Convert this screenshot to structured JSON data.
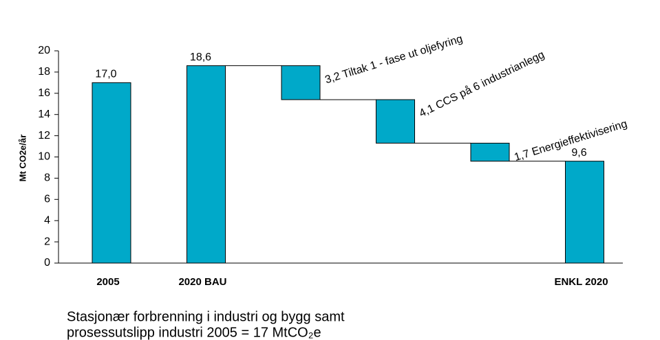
{
  "chart_data": {
    "type": "waterfall",
    "y_label": "Mt CO2e/år",
    "categories": [
      "2005",
      "2020 BAU",
      null,
      null,
      null,
      "ENKL 2020"
    ],
    "measures": [
      "absolute",
      "absolute",
      "decrease",
      "decrease",
      "decrease",
      "absolute"
    ],
    "values": [
      17.0,
      18.6,
      3.2,
      4.1,
      1.7,
      9.6
    ],
    "value_labels": [
      "17,0",
      "18,6",
      "3,2",
      "4,1",
      "1,7",
      "9,6"
    ],
    "step_labels": [
      null,
      null,
      "Tiltak 1 - fase ut oljefyring",
      "CCS på 6 industrianlegg",
      "Energieffektivisering",
      null
    ],
    "color": "#00a9c9",
    "ylim": [
      0,
      20
    ],
    "yticks": [
      0,
      2,
      4,
      6,
      8,
      10,
      12,
      14,
      16,
      18,
      20
    ],
    "grid": false,
    "caption": [
      "Stasjonær forbrenning i industri og bygg samt",
      "prosessutslipp industri 2005 = 17 MtCO₂e"
    ]
  }
}
